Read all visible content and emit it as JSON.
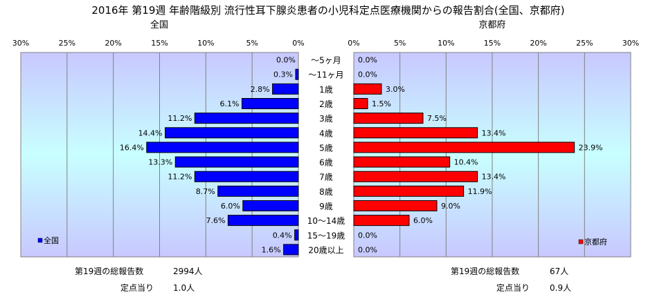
{
  "chart_data": {
    "type": "bar",
    "title": "2016年 第19週 年齢階級別 流行性耳下腺炎患者の小児科定点医療機関からの報告割合(全国、京都府)",
    "categories": [
      "～5ヶ月",
      "～11ヶ月",
      "1歳",
      "2歳",
      "3歳",
      "4歳",
      "5歳",
      "6歳",
      "7歳",
      "8歳",
      "9歳",
      "10～14歳",
      "15～19歳",
      "20歳以上"
    ],
    "xlim": [
      0,
      30
    ],
    "x_ticks": [
      "0%",
      "5%",
      "10%",
      "15%",
      "20%",
      "25%",
      "30%"
    ],
    "grid": true,
    "series": [
      {
        "name": "全国",
        "panel_title": "全国",
        "orientation": "right-to-left",
        "color": "#0000ff",
        "values": [
          0.0,
          0.3,
          2.8,
          6.1,
          11.2,
          14.4,
          16.4,
          13.3,
          11.2,
          8.7,
          6.0,
          7.6,
          0.4,
          1.6
        ],
        "labels": [
          "0.0%",
          "0.3%",
          "2.8%",
          "6.1%",
          "11.2%",
          "14.4%",
          "16.4%",
          "13.3%",
          "11.2%",
          "8.7%",
          "6.0%",
          "7.6%",
          "0.4%",
          "1.6%"
        ],
        "legend": "全国",
        "legend_position": "bottom-left"
      },
      {
        "name": "京都府",
        "panel_title": "京都府",
        "orientation": "left-to-right",
        "color": "#ff0000",
        "values": [
          0.0,
          0.0,
          3.0,
          1.5,
          7.5,
          13.4,
          23.9,
          10.4,
          13.4,
          11.9,
          9.0,
          6.0,
          0.0,
          0.0
        ],
        "labels": [
          "0.0%",
          "0.0%",
          "3.0%",
          "1.5%",
          "7.5%",
          "13.4%",
          "23.9%",
          "10.4%",
          "13.4%",
          "11.9%",
          "9.0%",
          "6.0%",
          "0.0%",
          "0.0%"
        ],
        "legend": "京都府",
        "legend_position": "bottom-right"
      }
    ]
  },
  "footer": {
    "national": {
      "total_label": "第19週の総報告数",
      "total_value": "2994人",
      "per_label": "定点当り",
      "per_value": "1.0人"
    },
    "kyoto": {
      "total_label": "第19週の総報告数",
      "total_value": "67人",
      "per_label": "定点当り",
      "per_value": "0.9人"
    }
  },
  "colors": {
    "national_bar": "#0000ff",
    "kyoto_bar": "#ff0000",
    "plot_top": "#c8c8ff",
    "plot_bottom": "#c8ffff"
  }
}
